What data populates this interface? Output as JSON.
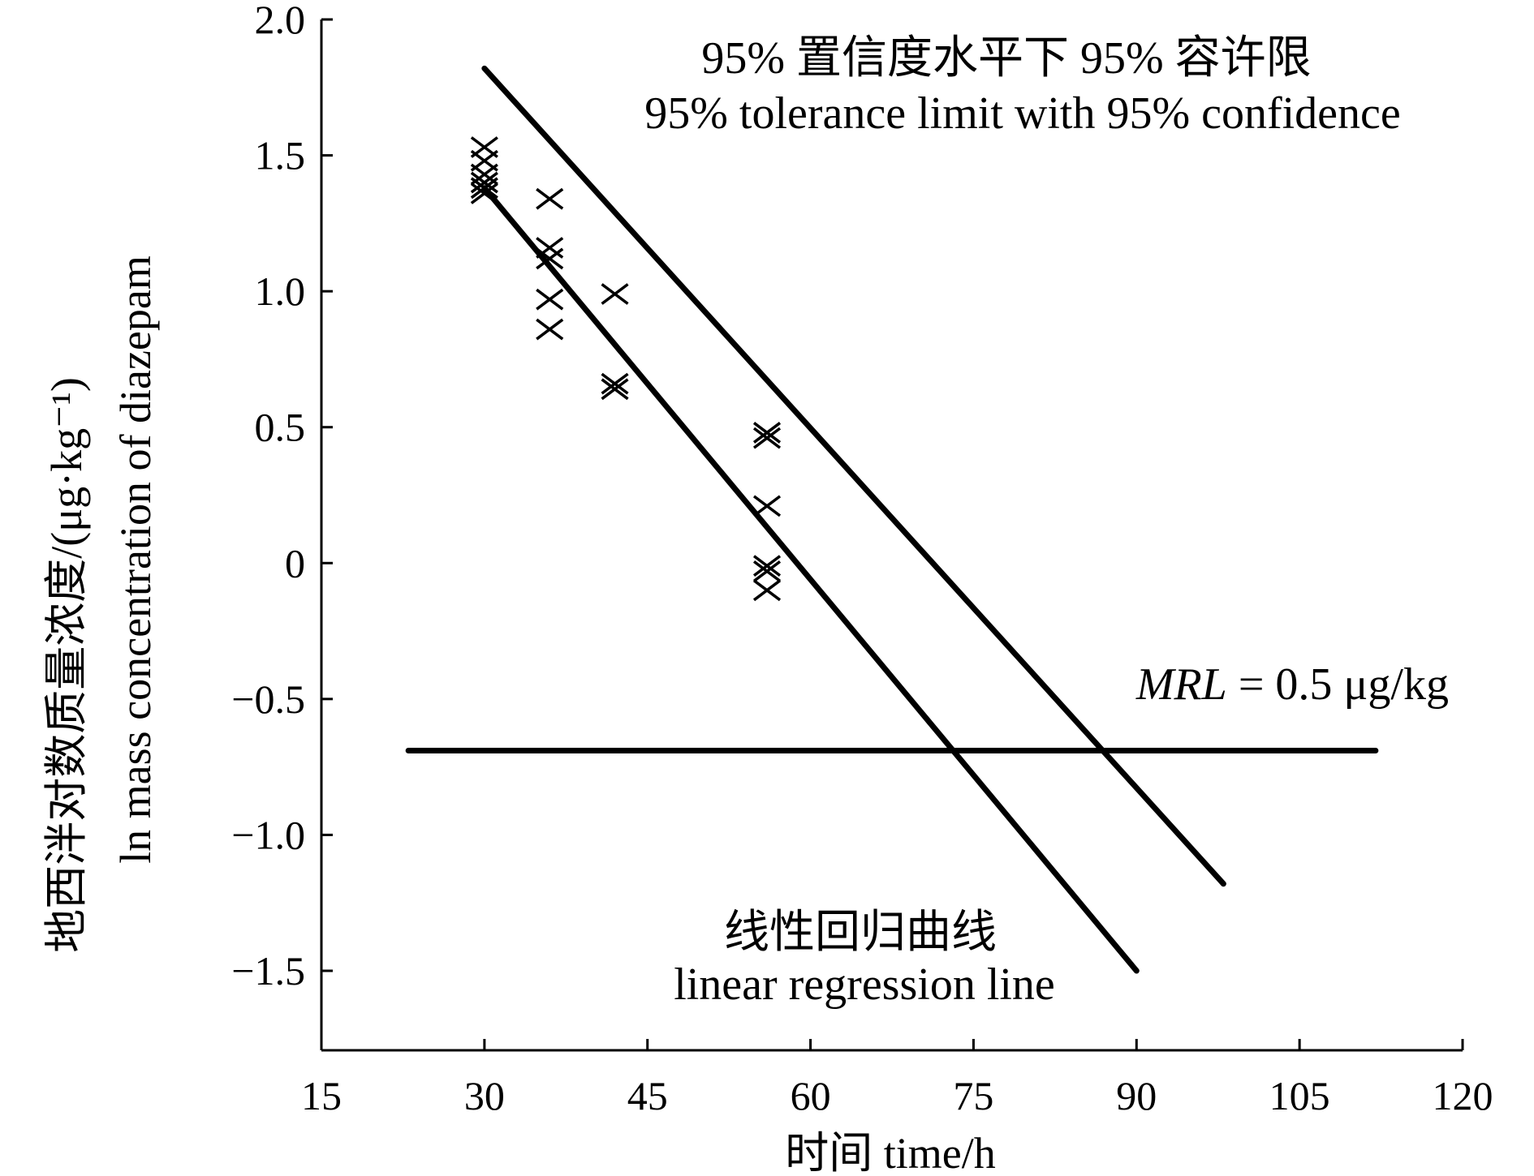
{
  "chart_data": {
    "type": "scatter",
    "title": "",
    "xlabel": "时间 time/h",
    "ylabel_cn": "地西泮对数质量浓度/(μg·kg⁻¹)",
    "ylabel_en": "ln mass concentration of diazepam",
    "xlim": [
      15,
      120
    ],
    "ylim": [
      -1.75,
      2.0
    ],
    "xticks": [
      15,
      30,
      45,
      60,
      75,
      90,
      105,
      120
    ],
    "xtick_labels": [
      "15",
      "30",
      "45",
      "60",
      "75",
      "90",
      "105",
      "120"
    ],
    "yticks": [
      2.0,
      1.5,
      1.0,
      0.5,
      0,
      -0.5,
      -1.0,
      -1.5
    ],
    "ytick_labels": [
      "2.0",
      "1.5",
      "1.0",
      "0.5",
      "0",
      "−0.5",
      "−1.0",
      "−1.5"
    ],
    "grid": false,
    "points": {
      "marker": "x",
      "x": [
        30,
        30,
        30,
        30,
        30,
        30,
        36,
        36,
        36,
        36,
        36,
        42,
        42,
        42,
        56,
        56,
        56,
        56,
        56,
        56
      ],
      "y": [
        1.53,
        1.48,
        1.43,
        1.4,
        1.38,
        1.36,
        1.34,
        1.16,
        1.12,
        0.97,
        0.86,
        0.99,
        0.66,
        0.64,
        0.48,
        0.46,
        0.21,
        -0.01,
        -0.03,
        -0.1
      ]
    },
    "series": [
      {
        "name": "linear regression line",
        "x": [
          30,
          90
        ],
        "y": [
          1.38,
          -1.5
        ]
      },
      {
        "name": "95% tolerance limit with 95% confidence",
        "x": [
          30,
          98
        ],
        "y": [
          1.82,
          -1.18
        ]
      },
      {
        "name": "MRL",
        "x": [
          23,
          112
        ],
        "y": [
          -0.69,
          -0.69
        ]
      }
    ],
    "annotations": {
      "tolerance_cn": "95% 置信度水平下 95% 容许限",
      "tolerance_en": "95% tolerance limit with 95% confidence",
      "regression_cn": "线性回归曲线",
      "regression_en": "linear regression line",
      "mrl_italic": "MRL",
      "mrl_rest": " = 0.5 μg/kg"
    }
  }
}
